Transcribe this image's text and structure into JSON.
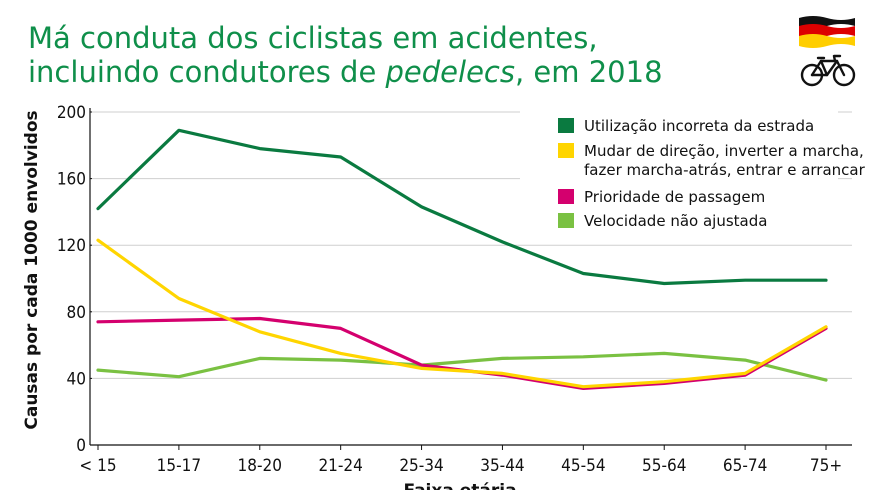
{
  "title": {
    "line1": "Má conduta dos ciclistas em acidentes,",
    "line2_prefix": "incluindo condutores de ",
    "line2_em": "pedelecs",
    "line2_suffix": ", em 2018"
  },
  "icons": {
    "flag": "germany-flag-icon",
    "bike": "bicycle-icon"
  },
  "chart_data": {
    "type": "line",
    "title": "Má conduta dos ciclistas em acidentes, incluindo condutores de pedelecs, em 2018",
    "xlabel": "Faixa etária",
    "ylabel": "Causas por cada 1000 envolvidos",
    "ylim": [
      0,
      200
    ],
    "yticks": [
      0,
      40,
      80,
      120,
      160,
      200
    ],
    "grid": true,
    "legend_position": "top-right",
    "categories": [
      "< 15",
      "15-17",
      "18-20",
      "21-24",
      "25-34",
      "35-44",
      "45-54",
      "55-64",
      "65-74",
      "75+"
    ],
    "series": [
      {
        "name": "Utilização incorreta da estrada",
        "color": "#0a7a40",
        "values": [
          142,
          189,
          178,
          173,
          143,
          122,
          103,
          97,
          99,
          99
        ]
      },
      {
        "name_lines": [
          "Mudar de direção, inverter a marcha,",
          "fazer marcha-atrás, entrar e arrancar"
        ],
        "color": "#ffd500",
        "values": [
          123,
          88,
          68,
          55,
          46,
          43,
          35,
          38,
          43,
          71
        ]
      },
      {
        "name": "Prioridade de passagem",
        "color": "#d4006e",
        "values": [
          74,
          75,
          76,
          70,
          48,
          42,
          34,
          37,
          42,
          70
        ]
      },
      {
        "name": "Velocidade não ajustada",
        "color": "#7ac142",
        "values": [
          45,
          41,
          52,
          51,
          48,
          52,
          53,
          55,
          51,
          39
        ]
      }
    ]
  }
}
